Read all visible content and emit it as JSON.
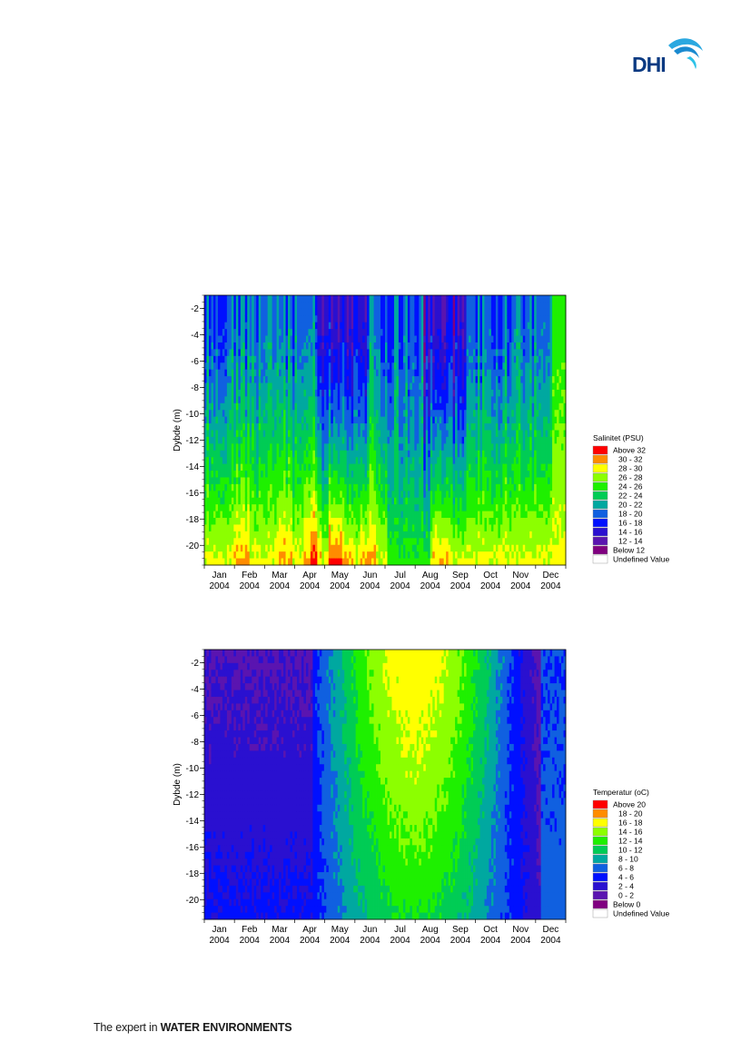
{
  "logo": {
    "text": "DHI"
  },
  "footer": {
    "prefix": "The expert in ",
    "emphasis": "WATER ENVIRONMENTS"
  },
  "chart_data": [
    {
      "type": "heatmap",
      "title": "",
      "xlabel": "",
      "ylabel": "Dybde (m)",
      "x": [
        "Jan 2004",
        "Feb 2004",
        "Mar 2004",
        "Apr 2004",
        "May 2004",
        "Jun 2004",
        "Jul 2004",
        "Aug 2004",
        "Sep 2004",
        "Oct 2004",
        "Nov 2004",
        "Dec 2004"
      ],
      "x_month": [
        "Jan",
        "Feb",
        "Mar",
        "Apr",
        "May",
        "Jun",
        "Jul",
        "Aug",
        "Sep",
        "Oct",
        "Nov",
        "Dec"
      ],
      "x_year": "2004",
      "y_ticks": [
        -2,
        -4,
        -6,
        -8,
        -10,
        -12,
        -14,
        -16,
        -18,
        -20
      ],
      "ylim": [
        -21.5,
        -1
      ],
      "legend_title": "Salinitet (PSU)",
      "legend_position": "right",
      "classes": [
        {
          "label": "Above 32",
          "color": "#ff0000"
        },
        {
          "label": "30 - 32",
          "color": "#ff8c00"
        },
        {
          "label": "28 - 30",
          "color": "#ffff00"
        },
        {
          "label": "26 - 28",
          "color": "#8cff00"
        },
        {
          "label": "24 - 26",
          "color": "#1ef000"
        },
        {
          "label": "22 - 24",
          "color": "#00cc55"
        },
        {
          "label": "20 - 22",
          "color": "#00a8a0"
        },
        {
          "label": "18 - 20",
          "color": "#1060e0"
        },
        {
          "label": "16 - 18",
          "color": "#0010ff"
        },
        {
          "label": "14 - 16",
          "color": "#2a10d0"
        },
        {
          "label": "12 - 14",
          "color": "#5a14b0"
        },
        {
          "label": "Below 12",
          "color": "#800080"
        },
        {
          "label": "Undefined Value",
          "color": "#ffffff"
        }
      ]
    },
    {
      "type": "heatmap",
      "title": "",
      "xlabel": "",
      "ylabel": "Dybde (m)",
      "x": [
        "Jan 2004",
        "Feb 2004",
        "Mar 2004",
        "Apr 2004",
        "May 2004",
        "Jun 2004",
        "Jul 2004",
        "Aug 2004",
        "Sep 2004",
        "Oct 2004",
        "Nov 2004",
        "Dec 2004"
      ],
      "x_month": [
        "Jan",
        "Feb",
        "Mar",
        "Apr",
        "May",
        "Jun",
        "Jul",
        "Aug",
        "Sep",
        "Oct",
        "Nov",
        "Dec"
      ],
      "x_year": "2004",
      "y_ticks": [
        -2,
        -4,
        -6,
        -8,
        -10,
        -12,
        -14,
        -16,
        -18,
        -20
      ],
      "ylim": [
        -21.5,
        -1
      ],
      "legend_title": "Temperatur (oC)",
      "legend_position": "right",
      "classes": [
        {
          "label": "Above 20",
          "color": "#ff0000"
        },
        {
          "label": "18 - 20",
          "color": "#ff8c00"
        },
        {
          "label": "16 - 18",
          "color": "#ffff00"
        },
        {
          "label": "14 - 16",
          "color": "#8cff00"
        },
        {
          "label": "12 - 14",
          "color": "#1ef000"
        },
        {
          "label": "10 - 12",
          "color": "#00cc55"
        },
        {
          "label": "8 - 10",
          "color": "#00a8a0"
        },
        {
          "label": "6 - 8",
          "color": "#1060e0"
        },
        {
          "label": "4 - 6",
          "color": "#0010ff"
        },
        {
          "label": "2 - 4",
          "color": "#2a10d0"
        },
        {
          "label": "0 - 2",
          "color": "#5a14b0"
        },
        {
          "label": "Below 0",
          "color": "#800080"
        },
        {
          "label": "Undefined Value",
          "color": "#ffffff"
        }
      ]
    }
  ]
}
